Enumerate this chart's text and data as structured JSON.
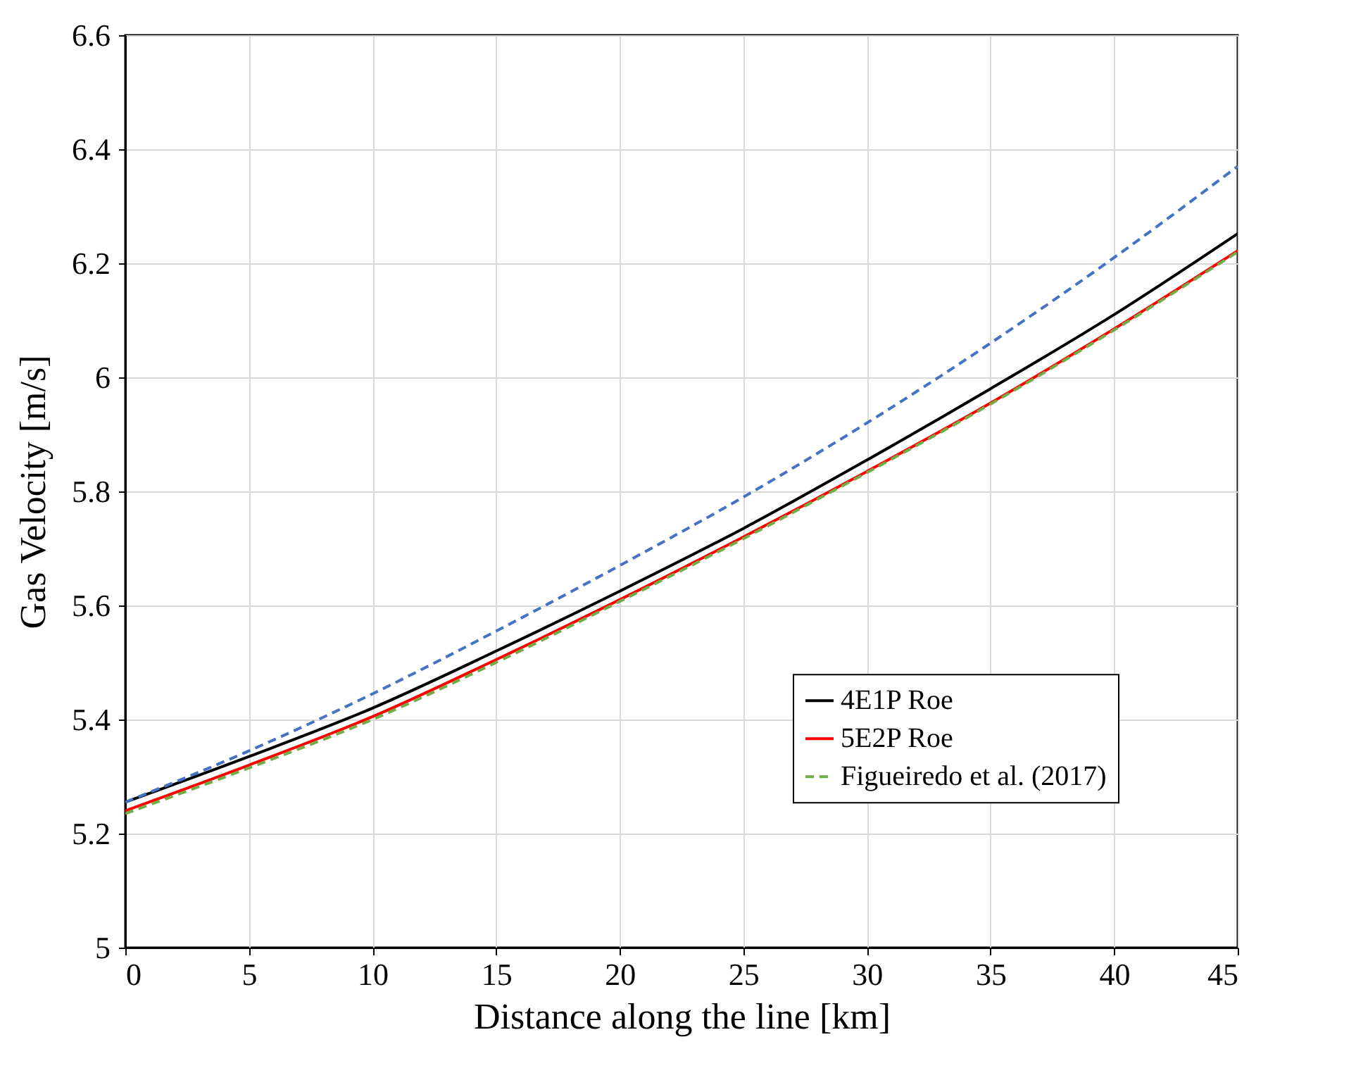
{
  "chart_data": {
    "type": "line",
    "xlabel": "Distance along the line [km]",
    "ylabel": "Gas Velocity [m/s]",
    "x": [
      0,
      5,
      10,
      15,
      20,
      25,
      30,
      35,
      40,
      45
    ],
    "series": [
      {
        "name": "4E1P Roe",
        "color": "#000000",
        "line_style": "solid",
        "values": [
          5.255,
          5.335,
          5.42,
          5.52,
          5.625,
          5.735,
          5.855,
          5.98,
          6.11,
          6.252
        ]
      },
      {
        "name": "5E2P Roe",
        "color": "#ff0000",
        "line_style": "solid",
        "values": [
          5.24,
          5.32,
          5.405,
          5.505,
          5.61,
          5.72,
          5.835,
          5.955,
          6.085,
          6.222
        ]
      },
      {
        "name": "Figueiredo et al. (2017)",
        "color": "#70ad47",
        "line_style": "dashed",
        "values": [
          5.235,
          5.315,
          5.4,
          5.5,
          5.607,
          5.717,
          5.833,
          5.953,
          6.083,
          6.22
        ]
      },
      {
        "color": "#4472c4",
        "line_style": "dashed",
        "values": [
          5.255,
          5.345,
          5.445,
          5.555,
          5.67,
          5.79,
          5.92,
          6.06,
          6.21,
          6.37
        ]
      }
    ],
    "xlim": [
      0,
      45
    ],
    "xticks": [
      0,
      5,
      10,
      15,
      20,
      25,
      30,
      35,
      40,
      45
    ],
    "ylim": [
      5,
      6.6
    ],
    "yticks": [
      5,
      5.2,
      5.4,
      5.6,
      5.8,
      6,
      6.2,
      6.4,
      6.6
    ],
    "grid": true,
    "legend": "bottom right",
    "marker": "none"
  }
}
